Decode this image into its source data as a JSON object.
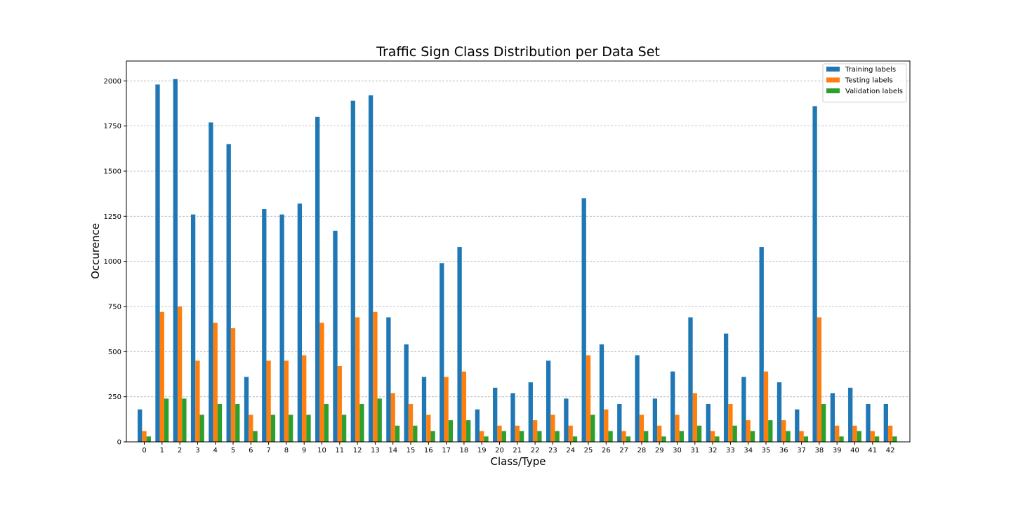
{
  "chart_data": {
    "type": "bar",
    "title": "Traffic Sign Class Distribution per Data Set",
    "xlabel": "Class/Type",
    "ylabel": "Occurence",
    "categories": [
      "0",
      "1",
      "2",
      "3",
      "4",
      "5",
      "6",
      "7",
      "8",
      "9",
      "10",
      "11",
      "12",
      "13",
      "14",
      "15",
      "16",
      "17",
      "18",
      "19",
      "20",
      "21",
      "22",
      "23",
      "24",
      "25",
      "26",
      "27",
      "28",
      "29",
      "30",
      "31",
      "32",
      "33",
      "34",
      "35",
      "36",
      "37",
      "38",
      "39",
      "40",
      "41",
      "42"
    ],
    "ylim": [
      0,
      2110
    ],
    "yticks": [
      0,
      250,
      500,
      750,
      1000,
      1250,
      1500,
      1750,
      2000
    ],
    "grid": "y",
    "legend_position": "top-right",
    "series": [
      {
        "name": "Training labels",
        "color": "#1f77b4",
        "values": [
          180,
          1980,
          2010,
          1260,
          1770,
          1650,
          360,
          1290,
          1260,
          1320,
          1800,
          1170,
          1890,
          1920,
          690,
          540,
          360,
          990,
          1080,
          180,
          300,
          270,
          330,
          450,
          240,
          1350,
          540,
          210,
          480,
          240,
          390,
          690,
          210,
          600,
          360,
          1080,
          330,
          180,
          1860,
          270,
          300,
          210,
          210
        ]
      },
      {
        "name": "Testing labels",
        "color": "#ff7f0e",
        "values": [
          60,
          720,
          750,
          450,
          660,
          630,
          150,
          450,
          450,
          480,
          660,
          420,
          690,
          720,
          270,
          210,
          150,
          360,
          390,
          60,
          90,
          90,
          120,
          150,
          90,
          480,
          180,
          60,
          150,
          90,
          150,
          270,
          60,
          210,
          120,
          390,
          120,
          60,
          690,
          90,
          90,
          60,
          90
        ]
      },
      {
        "name": "Validation labels",
        "color": "#2ca02c",
        "values": [
          30,
          240,
          240,
          150,
          210,
          210,
          60,
          150,
          150,
          150,
          210,
          150,
          210,
          240,
          90,
          90,
          60,
          120,
          120,
          30,
          60,
          60,
          60,
          60,
          30,
          150,
          60,
          30,
          60,
          30,
          60,
          90,
          30,
          90,
          60,
          120,
          60,
          30,
          210,
          30,
          60,
          30,
          30
        ]
      }
    ]
  }
}
